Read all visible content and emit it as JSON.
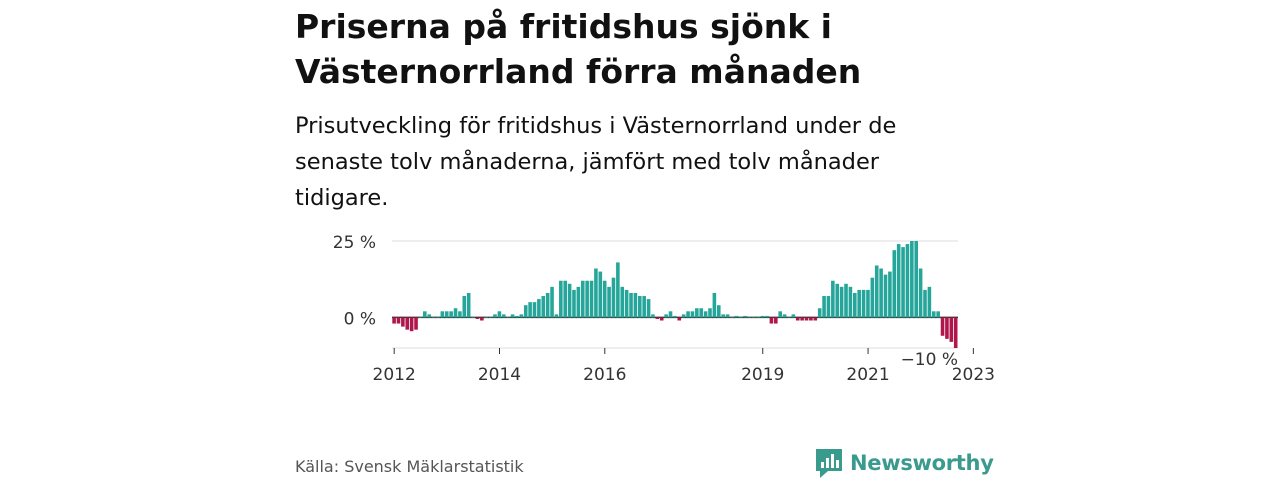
{
  "title": "Priserna på fritidshus sjönk i Västernorrland förra månaden",
  "subtitle": "Prisutveckling för fritidshus i Västernorrland under de senaste tolv månaderna, jämfört med tolv månader tidigare.",
  "source": "Källa: Svensk Mäklarstatistik",
  "logo": {
    "text": "Newsworthy",
    "icon": "chart-bubble-icon"
  },
  "colors": {
    "positive": "#26a69a",
    "negative": "#b0164c",
    "grid": "#dddddd",
    "axis": "#333333"
  },
  "chart_data": {
    "type": "bar",
    "ylim": [
      -10,
      25
    ],
    "yticks": [
      {
        "value": 25,
        "label": "25 %"
      },
      {
        "value": 0,
        "label": "0 %"
      },
      {
        "value": -10,
        "label": "−10 %"
      }
    ],
    "xticks": [
      {
        "label": "2012",
        "date": "2012-01"
      },
      {
        "label": "2014",
        "date": "2014-01"
      },
      {
        "label": "2016",
        "date": "2016-01"
      },
      {
        "label": "2019",
        "date": "2019-01"
      },
      {
        "label": "2021",
        "date": "2021-01"
      },
      {
        "label": "2023",
        "date": "2023-01"
      }
    ],
    "start": "2012-01",
    "values": [
      -2,
      -2,
      -3,
      -4,
      -4.5,
      -4,
      0,
      2,
      1,
      0,
      0,
      2,
      2,
      2,
      3,
      2,
      7,
      8,
      0,
      -0.5,
      -1,
      0,
      0,
      1,
      2,
      1,
      0,
      1,
      0.5,
      1,
      4,
      5,
      5,
      6,
      7,
      8,
      10,
      1,
      12,
      12,
      11,
      9,
      10,
      12,
      12,
      12,
      16,
      15,
      12,
      10,
      13,
      18,
      10,
      9,
      8,
      8,
      7,
      7,
      6,
      1,
      -0.5,
      -1,
      1,
      2,
      0.5,
      -1,
      1,
      2,
      2,
      3,
      3,
      2,
      3,
      8,
      4,
      1,
      1,
      0,
      0.5,
      0,
      0.5,
      0,
      0,
      0,
      0.5,
      0.5,
      -2,
      -2,
      2,
      1,
      0,
      1,
      -1,
      -1,
      -1,
      -1,
      -1,
      3,
      7,
      7,
      12,
      11,
      10,
      11,
      10,
      8,
      9,
      9,
      9,
      13,
      17,
      16,
      14,
      15,
      22,
      24,
      23,
      24,
      25,
      25,
      16,
      9,
      10,
      2,
      2,
      -6,
      -7,
      -8,
      -10
    ]
  }
}
